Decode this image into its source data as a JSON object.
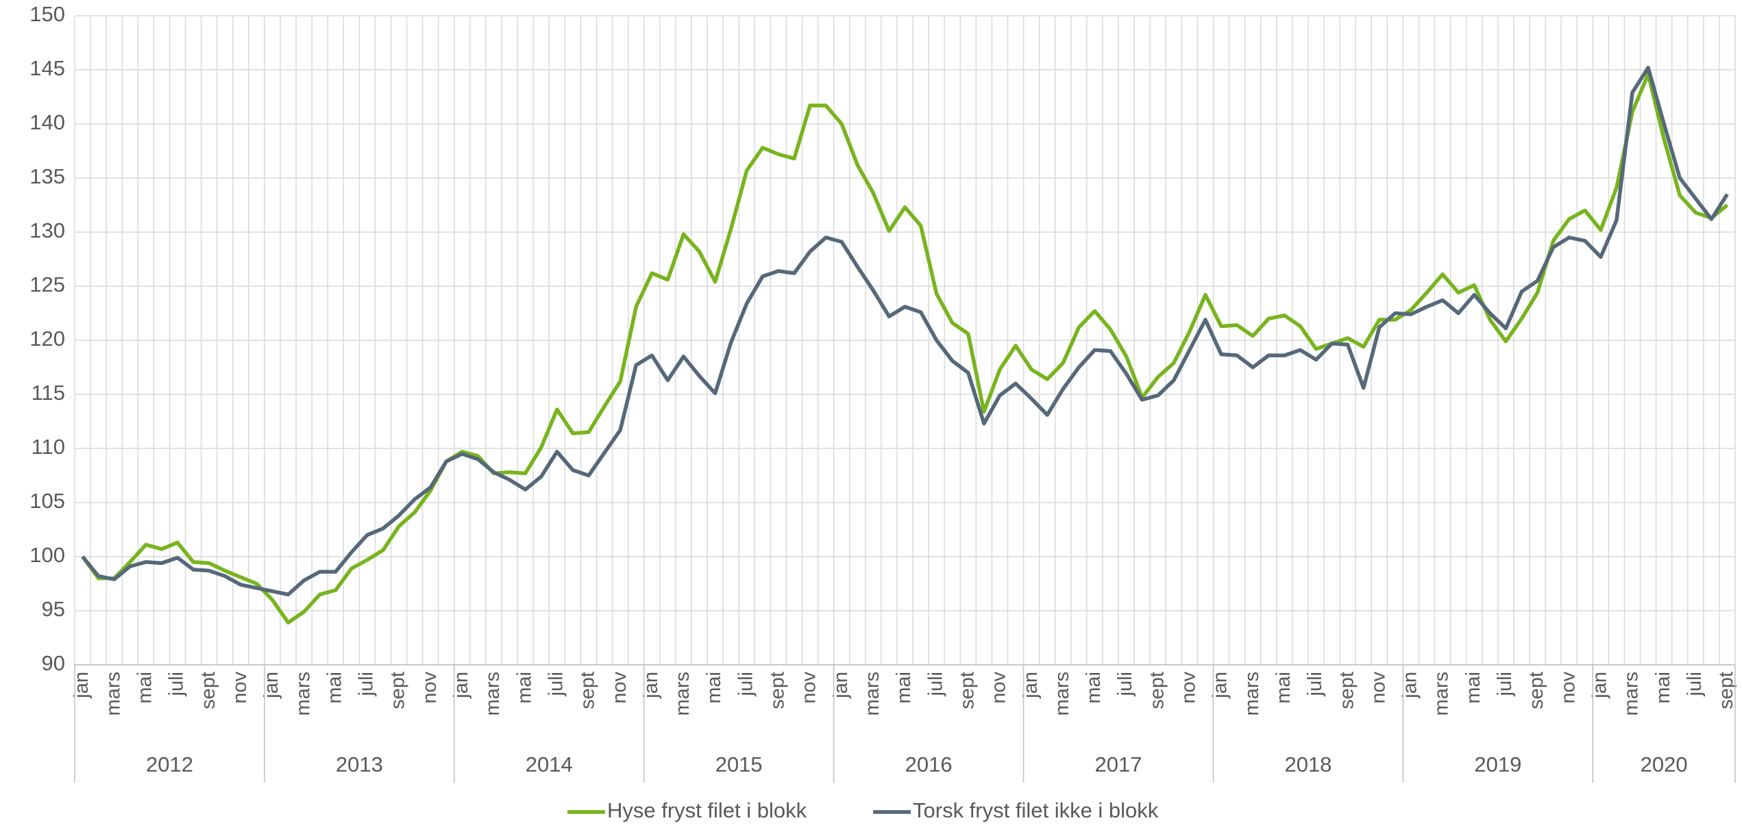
{
  "chart_data": {
    "type": "line",
    "categories": [
      "jan",
      null,
      "mars",
      null,
      "mai",
      null,
      "juli",
      null,
      "sept",
      null,
      "nov",
      null,
      "jan",
      null,
      "mars",
      null,
      "mai",
      null,
      "juli",
      null,
      "sept",
      null,
      "nov",
      null,
      "jan",
      null,
      "mars",
      null,
      "mai",
      null,
      "juli",
      null,
      "sept",
      null,
      "nov",
      null,
      "jan",
      null,
      "mars",
      null,
      "mai",
      null,
      "juli",
      null,
      "sept",
      null,
      "nov",
      null,
      "jan",
      null,
      "mars",
      null,
      "mai",
      null,
      "juli",
      null,
      "sept",
      null,
      "nov",
      null,
      "jan",
      null,
      "mars",
      null,
      "mai",
      null,
      "juli",
      null,
      "sept",
      null,
      "nov",
      null,
      "jan",
      null,
      "mars",
      null,
      "mai",
      null,
      "juli",
      null,
      "sept",
      null,
      "nov",
      null,
      "jan",
      null,
      "mars",
      null,
      "mai",
      null,
      "juli",
      null,
      "sept",
      null,
      "nov",
      null,
      "jan",
      null,
      "mars",
      null,
      "mai",
      null,
      "juli",
      null,
      "sept"
    ],
    "years": [
      "2012",
      "2013",
      "2014",
      "2015",
      "2016",
      "2017",
      "2018",
      "2019",
      "2020"
    ],
    "series": [
      {
        "name": "Hyse fryst filet i blokk",
        "color": "#78b41e",
        "values": [
          100,
          98,
          98,
          99.5,
          101.1,
          100.7,
          101.3,
          99.5,
          99.4,
          98.7,
          98.1,
          97.5,
          96,
          93.9,
          94.9,
          96.5,
          96.9,
          98.9,
          99.7,
          100.6,
          102.8,
          104.1,
          106.1,
          108.8,
          109.7,
          109.3,
          107.7,
          107.8,
          107.7,
          110.1,
          113.6,
          111.4,
          111.5,
          113.9,
          116.2,
          123.1,
          126.2,
          125.6,
          129.8,
          128.2,
          125.4,
          130.3,
          135.7,
          137.8,
          137.2,
          136.8,
          141.7,
          141.7,
          140,
          136.2,
          133.6,
          130.1,
          132.3,
          130.6,
          124.3,
          121.6,
          120.6,
          113.4,
          117.3,
          119.5,
          117.3,
          116.4,
          117.9,
          121.2,
          122.7,
          121,
          118.5,
          114.7,
          116.6,
          117.9,
          120.8,
          124.2,
          121.3,
          121.4,
          120.4,
          122,
          122.3,
          121.3,
          119.2,
          119.7,
          120.2,
          119.4,
          121.9,
          121.9,
          122.8,
          124.4,
          126.1,
          124.4,
          125.1,
          121.9,
          119.9,
          122,
          124.4,
          129.2,
          131.2,
          132,
          130.2,
          134.1,
          141.1,
          144.6,
          138.6,
          133.4,
          131.8,
          131.3,
          132.5
        ]
      },
      {
        "name": "Torsk fryst filet ikke i blokk",
        "color": "#56687a",
        "values": [
          100,
          98.2,
          97.9,
          99.1,
          99.5,
          99.4,
          99.9,
          98.8,
          98.7,
          98.2,
          97.4,
          97.1,
          96.8,
          96.5,
          97.8,
          98.6,
          98.6,
          100.4,
          102,
          102.6,
          103.8,
          105.3,
          106.4,
          108.8,
          109.5,
          109,
          107.8,
          107.1,
          106.2,
          107.4,
          109.7,
          108,
          107.5,
          109.6,
          111.7,
          117.7,
          118.6,
          116.3,
          118.5,
          116.7,
          115.1,
          119.8,
          123.4,
          125.9,
          126.4,
          126.2,
          128.2,
          129.5,
          129.1,
          126.8,
          124.6,
          122.2,
          123.1,
          122.6,
          120,
          118.1,
          117,
          112.3,
          114.9,
          116,
          114.6,
          113.1,
          115.5,
          117.5,
          119.1,
          119,
          116.9,
          114.5,
          114.9,
          116.3,
          119.1,
          121.9,
          118.7,
          118.6,
          117.5,
          118.6,
          118.6,
          119.1,
          118.2,
          119.7,
          119.6,
          115.6,
          121.2,
          122.5,
          122.4,
          123.1,
          123.7,
          122.5,
          124.2,
          122.5,
          121.1,
          124.5,
          125.5,
          128.6,
          129.5,
          129.2,
          127.7,
          131.1,
          142.9,
          145.2,
          140,
          135,
          133.1,
          131.2,
          133.5
        ]
      }
    ],
    "ylim": [
      90,
      150
    ],
    "yticks": [
      90,
      95,
      100,
      105,
      110,
      115,
      120,
      125,
      130,
      135,
      140,
      145,
      150
    ],
    "grid": true,
    "legend": "bottom"
  }
}
